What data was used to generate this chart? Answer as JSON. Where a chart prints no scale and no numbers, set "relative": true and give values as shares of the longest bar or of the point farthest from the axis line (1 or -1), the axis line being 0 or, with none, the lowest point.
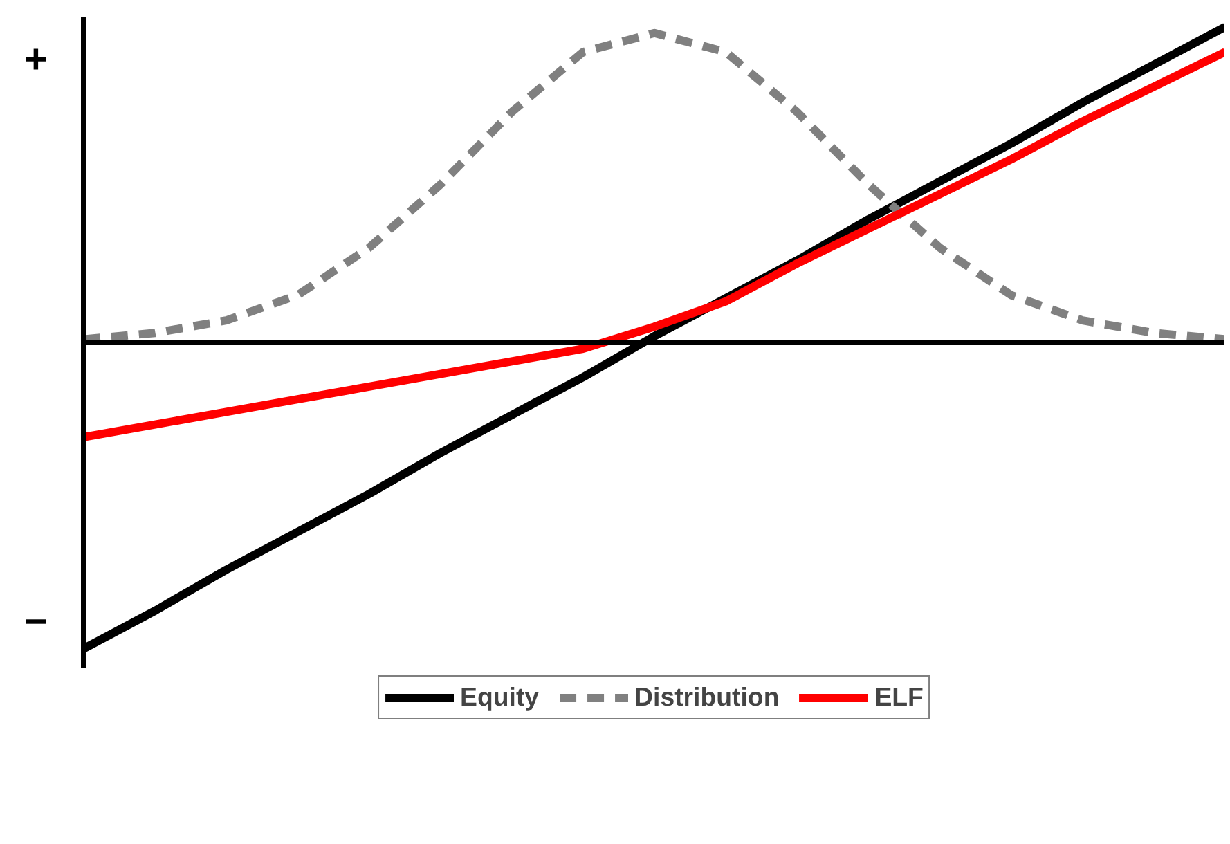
{
  "chart_data": {
    "type": "line",
    "relative": true,
    "categories": [
      null,
      null,
      null,
      null,
      null,
      null,
      null,
      null,
      null,
      null,
      null,
      null,
      null,
      null,
      null,
      null,
      null
    ],
    "series": [
      {
        "name": "Equity",
        "color": "#000000",
        "line_style": "solid",
        "values": [
          -0.97,
          -0.85,
          -0.72,
          -0.6,
          -0.48,
          -0.35,
          -0.23,
          -0.11,
          0.02,
          0.14,
          0.26,
          0.39,
          0.51,
          0.63,
          0.76,
          0.88,
          1.0
        ]
      },
      {
        "name": "Distribution",
        "color": "#808080",
        "line_style": "dashed",
        "values": [
          0.01,
          0.03,
          0.07,
          0.15,
          0.3,
          0.5,
          0.73,
          0.92,
          0.98,
          0.92,
          0.73,
          0.5,
          0.3,
          0.15,
          0.07,
          0.03,
          0.01
        ]
      },
      {
        "name": "ELF",
        "color": "#ff0000",
        "line_style": "solid",
        "values": [
          -0.3,
          -0.26,
          -0.22,
          -0.18,
          -0.14,
          -0.1,
          -0.06,
          -0.02,
          0.05,
          0.13,
          0.25,
          0.36,
          0.47,
          0.58,
          0.7,
          0.81,
          0.92
        ]
      }
    ],
    "annotations": [
      "+",
      "−"
    ],
    "legend": "bottom",
    "marker": "none",
    "grid": false
  }
}
